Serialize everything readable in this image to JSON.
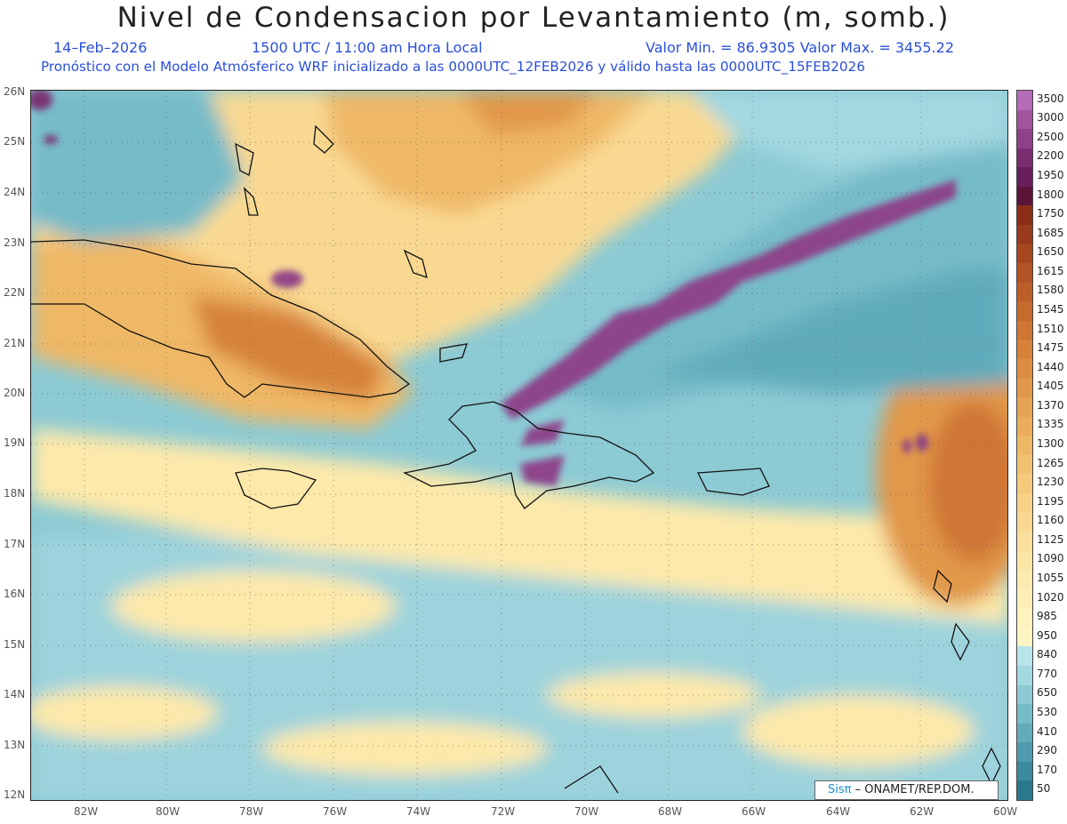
{
  "title": "Nivel de Condensacion por Levantamiento (m, somb.)",
  "date": "14–Feb–2026",
  "time": "1500 UTC / 11:00 am Hora Local",
  "minmax": "Valor Min. = 86.9305   Valor Max. = 3455.22",
  "description": "Pronóstico con el Modelo Atmósferico WRF inicializado a las 0000UTC_12FEB2026 y válido hasta las  0000UTC_15FEB2026",
  "credit": {
    "logo": "Sisπ",
    "text": "– ONAMET/REP.DOM."
  },
  "lat_labels": [
    "26N",
    "25N",
    "24N",
    "23N",
    "22N",
    "21N",
    "20N",
    "19N",
    "18N",
    "17N",
    "16N",
    "15N",
    "14N",
    "13N",
    "12N"
  ],
  "lon_labels": [
    "82W",
    "80W",
    "78W",
    "76W",
    "74W",
    "72W",
    "70W",
    "68W",
    "66W",
    "64W",
    "62W",
    "60W"
  ],
  "colorbar": [
    {
      "label": "3500",
      "color": "#b56bb8"
    },
    {
      "label": "3000",
      "color": "#a2559e"
    },
    {
      "label": "2500",
      "color": "#8e4188"
    },
    {
      "label": "2200",
      "color": "#7a2e72"
    },
    {
      "label": "1950",
      "color": "#691e5c"
    },
    {
      "label": "1800",
      "color": "#5a1438"
    },
    {
      "label": "1750",
      "color": "#8a2e18"
    },
    {
      "label": "1685",
      "color": "#9a3a1c"
    },
    {
      "label": "1650",
      "color": "#a84620"
    },
    {
      "label": "1615",
      "color": "#b35324"
    },
    {
      "label": "1580",
      "color": "#bd5e29"
    },
    {
      "label": "1545",
      "color": "#c66a2e"
    },
    {
      "label": "1510",
      "color": "#cf7634"
    },
    {
      "label": "1475",
      "color": "#d6823a"
    },
    {
      "label": "1440",
      "color": "#dc8d42"
    },
    {
      "label": "1405",
      "color": "#e1984a"
    },
    {
      "label": "1370",
      "color": "#e6a353"
    },
    {
      "label": "1335",
      "color": "#ebad5c"
    },
    {
      "label": "1300",
      "color": "#efb866"
    },
    {
      "label": "1265",
      "color": "#f2c171"
    },
    {
      "label": "1230",
      "color": "#f5ca7c"
    },
    {
      "label": "1195",
      "color": "#f7d287"
    },
    {
      "label": "1160",
      "color": "#f9d992"
    },
    {
      "label": "1125",
      "color": "#fae09c"
    },
    {
      "label": "1090",
      "color": "#fbe6a6"
    },
    {
      "label": "1055",
      "color": "#fcebaf"
    },
    {
      "label": "1020",
      "color": "#fdefb7"
    },
    {
      "label": "985",
      "color": "#fef2bd"
    },
    {
      "label": "950",
      "color": "#fff5c2"
    },
    {
      "label": "840",
      "color": "#b8e4ea"
    },
    {
      "label": "770",
      "color": "#a2d8e0"
    },
    {
      "label": "650",
      "color": "#8ccad4"
    },
    {
      "label": "530",
      "color": "#76bbc8"
    },
    {
      "label": "410",
      "color": "#61abbb"
    },
    {
      "label": "290",
      "color": "#4d9bad"
    },
    {
      "label": "170",
      "color": "#3b8a9e"
    },
    {
      "label": "50",
      "color": "#2a788d"
    }
  ]
}
